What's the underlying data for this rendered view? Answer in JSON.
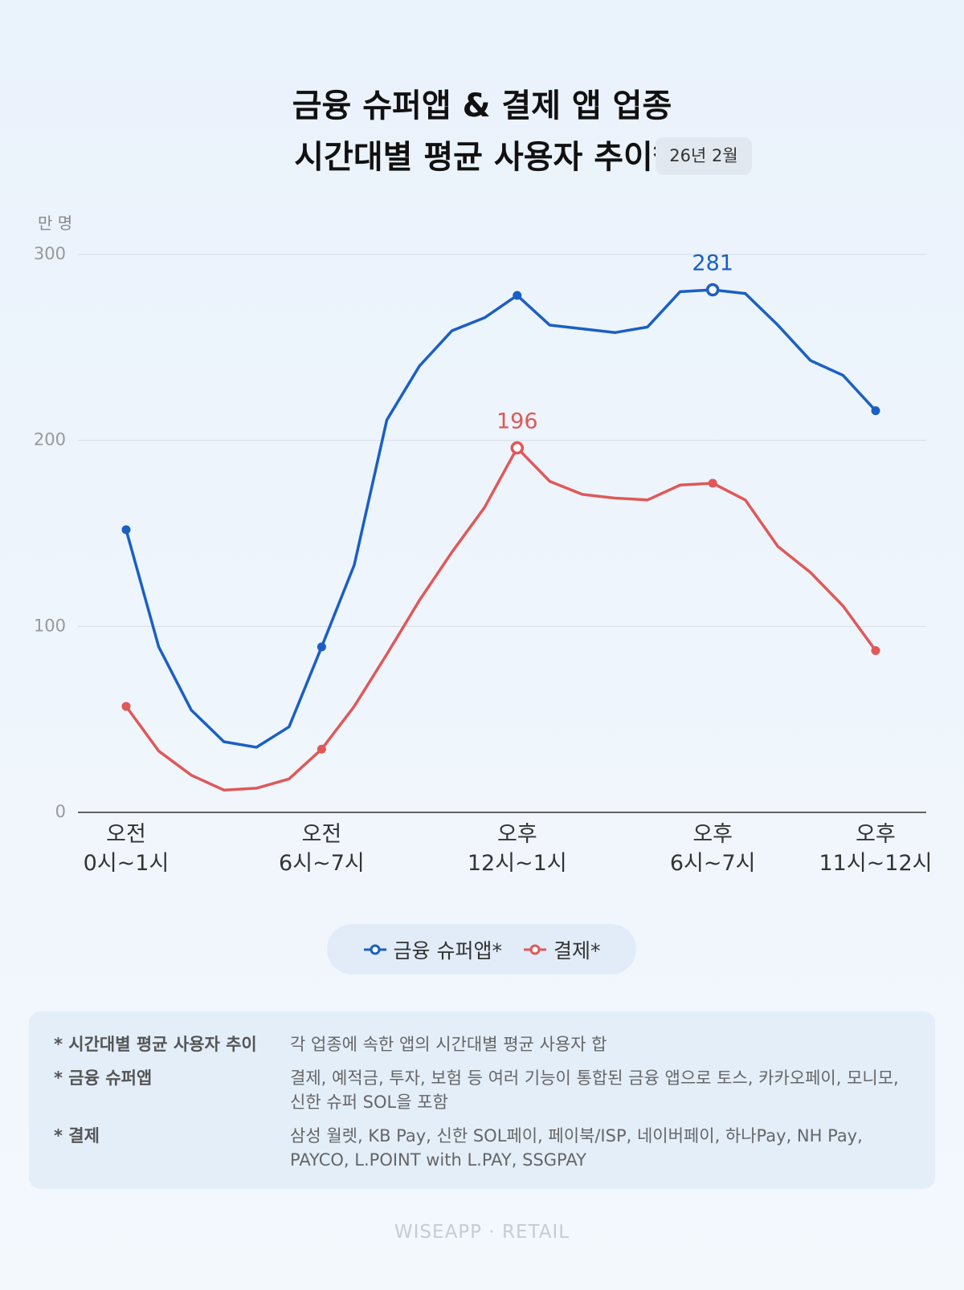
{
  "chart_data": {
    "type": "line",
    "title": "금융 슈퍼앱 & 결제 앱 업종\n시간대별 평균 사용자 추이*",
    "period": "26년 2월",
    "y_axis_label": "만 명",
    "categories": [
      "오전\n0시~1시",
      null,
      null,
      null,
      null,
      null,
      "오전\n6시~7시",
      null,
      null,
      null,
      null,
      null,
      "오후\n12시~1시",
      null,
      null,
      null,
      null,
      null,
      "오후\n6시~7시",
      null,
      null,
      null,
      null,
      "오후\n11시~12시"
    ],
    "series": [
      {
        "name": "금융 슈퍼앱*",
        "color": "#1a5fc4",
        "values": [
          152,
          89,
          55,
          38,
          35,
          46,
          89,
          133,
          211,
          240,
          259,
          266,
          278,
          262,
          260,
          258,
          261,
          280,
          281,
          279,
          262,
          243,
          235,
          216
        ]
      },
      {
        "name": "결제*",
        "color": "#e05858",
        "values": [
          57,
          33,
          20,
          12,
          13,
          18,
          34,
          57,
          85,
          114,
          140,
          164,
          196,
          178,
          171,
          169,
          168,
          176,
          177,
          168,
          143,
          129,
          111,
          87
        ]
      }
    ],
    "ylim": [
      0,
      300
    ],
    "yticks": [
      0,
      100,
      200,
      300
    ],
    "grid": true,
    "legend": "bottom"
  },
  "notes": [
    {
      "term": "* 시간대별 평균 사용자 추이",
      "text": "각 업종에 속한 앱의 시간대별 평균 사용자 합"
    },
    {
      "term": "* 금융 슈퍼앱",
      "text": "결제, 예적금, 투자, 보험 등 여러 기능이 통합된 금융 앱으로 토스, 카카오페이, 모니모, 신한 슈퍼 SOL을 포함"
    },
    {
      "term": "* 결제",
      "text": "삼성 월렛, KB Pay, 신한 SOL페이, 페이북/ISP, 네이버페이, 하나Pay, NH Pay, PAYCO, L.POINT with L.PAY, SSGPAY"
    }
  ],
  "footer": "WISEAPP · RETAIL"
}
